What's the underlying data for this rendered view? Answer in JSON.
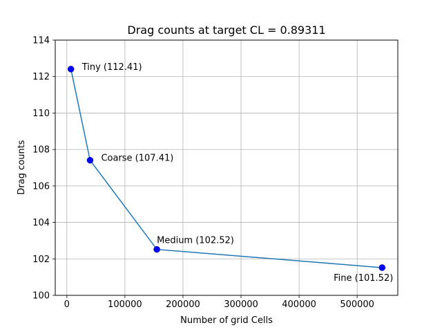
{
  "chart_data": {
    "type": "line",
    "title": "Drag counts at target CL = 0.89311",
    "xlabel": "Number of grid Cells",
    "ylabel": "Drag counts",
    "xlim": [
      -20000,
      570000
    ],
    "ylim": [
      100,
      114
    ],
    "x_ticks": [
      0,
      100000,
      200000,
      300000,
      400000,
      500000
    ],
    "y_ticks": [
      100,
      102,
      104,
      106,
      108,
      110,
      112,
      114
    ],
    "grid": true,
    "line_color": "#1f77b4",
    "marker_color": "#0000ff",
    "points": [
      {
        "x": 7000,
        "y": 112.41,
        "label": "Tiny (112.41)",
        "label_pos": "right"
      },
      {
        "x": 40000,
        "y": 107.41,
        "label": "Coarse (107.41)",
        "label_pos": "right"
      },
      {
        "x": 155000,
        "y": 102.52,
        "label": "Medium (102.52)",
        "label_pos": "above"
      },
      {
        "x": 543000,
        "y": 101.52,
        "label": "Fine (101.52)",
        "label_pos": "below-left"
      }
    ]
  }
}
